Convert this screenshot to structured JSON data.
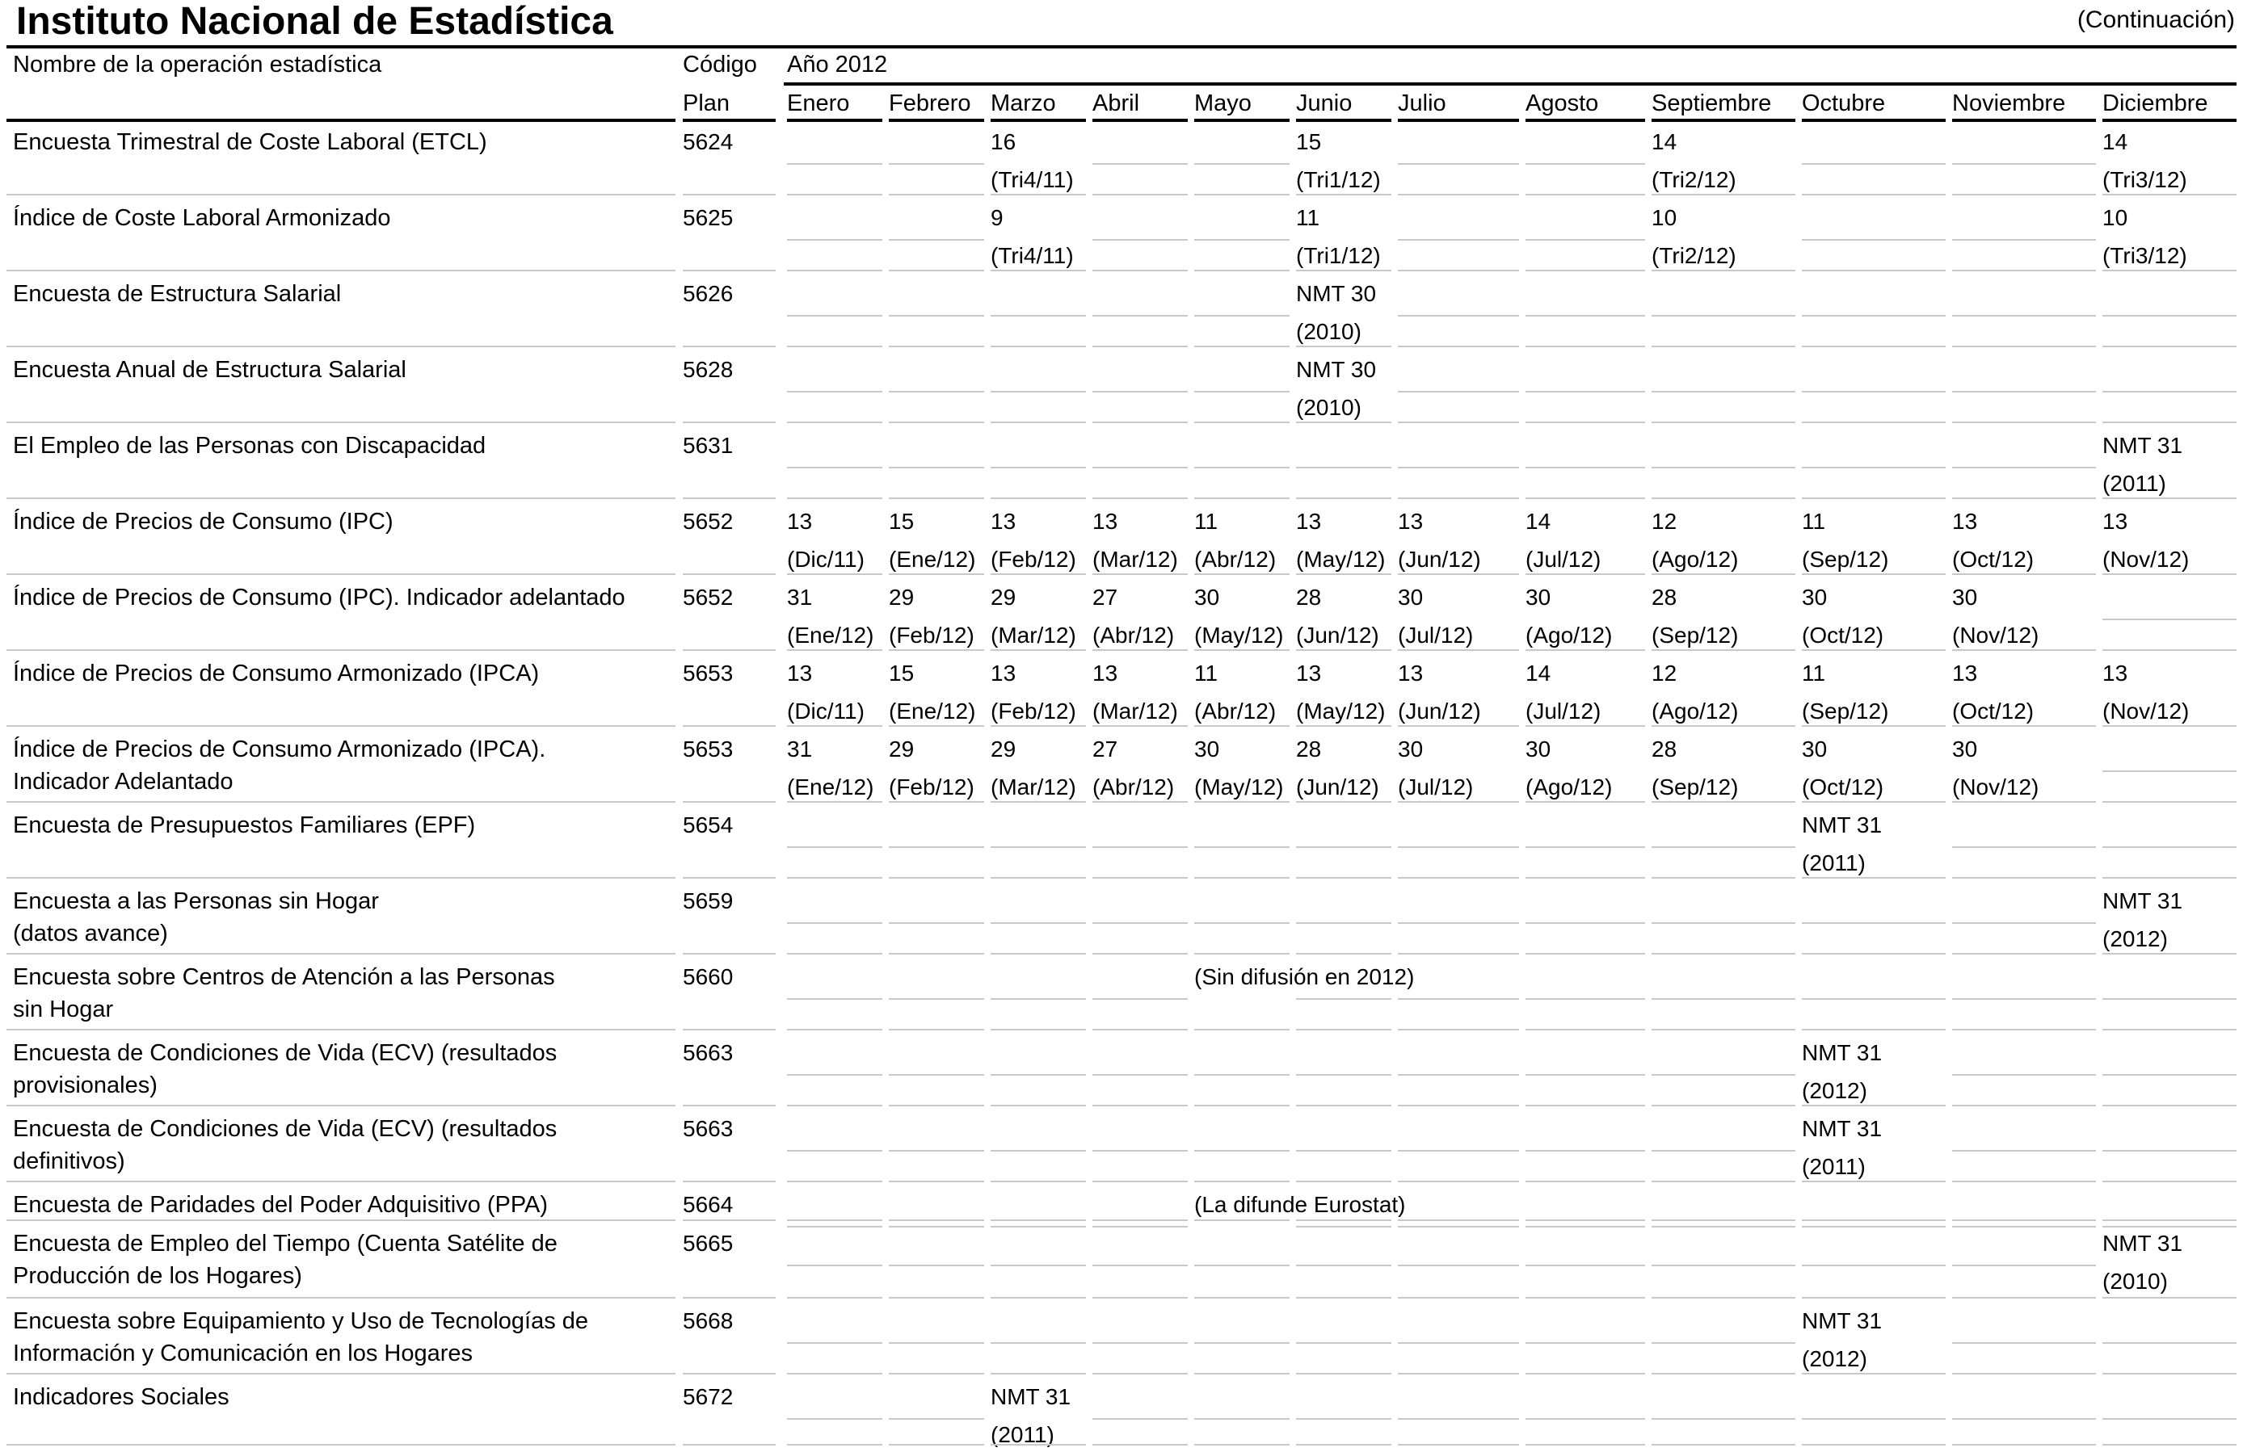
{
  "header": {
    "title": "Instituto Nacional de Estadística",
    "continuation": "(Continuación)"
  },
  "table": {
    "col_name": "Nombre de la operación estadística",
    "col_code_1": "Código",
    "col_code_2": "Plan",
    "year_label": "Año 2012",
    "months": [
      "Enero",
      "Febrero",
      "Marzo",
      "Abril",
      "Mayo",
      "Junio",
      "Julio",
      "Agosto",
      "Septiembre",
      "Octubre",
      "Noviembre",
      "Diciembre"
    ],
    "rows": [
      {
        "name": [
          "Encuesta Trimestral de Coste Laboral (ETCL)"
        ],
        "code": "5624",
        "entries": [
          {
            "m": 2,
            "l": [
              "16",
              "(Tri4/11)"
            ]
          },
          {
            "m": 5,
            "l": [
              "15",
              "(Tri1/12)"
            ]
          },
          {
            "m": 8,
            "l": [
              "14",
              "(Tri2/12)"
            ]
          },
          {
            "m": 11,
            "l": [
              "14",
              "(Tri3/12)"
            ]
          }
        ]
      },
      {
        "name": [
          "Índice de Coste Laboral Armonizado"
        ],
        "code": "5625",
        "entries": [
          {
            "m": 2,
            "l": [
              "9",
              "(Tri4/11)"
            ]
          },
          {
            "m": 5,
            "l": [
              "11",
              "(Tri1/12)"
            ]
          },
          {
            "m": 8,
            "l": [
              "10",
              "(Tri2/12)"
            ]
          },
          {
            "m": 11,
            "l": [
              "10",
              "(Tri3/12)"
            ]
          }
        ]
      },
      {
        "name": [
          "Encuesta de Estructura Salarial"
        ],
        "code": "5626",
        "entries": [
          {
            "m": 5,
            "l": [
              "NMT 30",
              "(2010)"
            ]
          }
        ]
      },
      {
        "name": [
          "Encuesta Anual de Estructura Salarial"
        ],
        "code": "5628",
        "entries": [
          {
            "m": 5,
            "l": [
              "NMT 30",
              "(2010)"
            ]
          }
        ]
      },
      {
        "name": [
          "El Empleo de las Personas con Discapacidad"
        ],
        "code": "5631",
        "entries": [
          {
            "m": 11,
            "l": [
              "NMT 31",
              "(2011)"
            ]
          }
        ]
      },
      {
        "name": [
          "Índice de Precios de Consumo (IPC)"
        ],
        "code": "5652",
        "entries": [
          {
            "m": 0,
            "l": [
              "13",
              "(Dic/11)"
            ]
          },
          {
            "m": 1,
            "l": [
              "15",
              "(Ene/12)"
            ]
          },
          {
            "m": 2,
            "l": [
              "13",
              "(Feb/12)"
            ]
          },
          {
            "m": 3,
            "l": [
              "13",
              "(Mar/12)"
            ]
          },
          {
            "m": 4,
            "l": [
              "11",
              "(Abr/12)"
            ]
          },
          {
            "m": 5,
            "l": [
              "13",
              "(May/12)"
            ]
          },
          {
            "m": 6,
            "l": [
              "13",
              "(Jun/12)"
            ]
          },
          {
            "m": 7,
            "l": [
              "14",
              "(Jul/12)"
            ]
          },
          {
            "m": 8,
            "l": [
              "12",
              "(Ago/12)"
            ]
          },
          {
            "m": 9,
            "l": [
              "11",
              "(Sep/12)"
            ]
          },
          {
            "m": 10,
            "l": [
              "13",
              "(Oct/12)"
            ]
          },
          {
            "m": 11,
            "l": [
              "13",
              "(Nov/12)"
            ]
          }
        ]
      },
      {
        "name": [
          "Índice de Precios de Consumo (IPC). Indicador adelantado"
        ],
        "code": "5652",
        "entries": [
          {
            "m": 0,
            "l": [
              "31",
              "(Ene/12)"
            ]
          },
          {
            "m": 1,
            "l": [
              "29",
              "(Feb/12)"
            ]
          },
          {
            "m": 2,
            "l": [
              "29",
              "(Mar/12)"
            ]
          },
          {
            "m": 3,
            "l": [
              "27",
              "(Abr/12)"
            ]
          },
          {
            "m": 4,
            "l": [
              "30",
              "(May/12)"
            ]
          },
          {
            "m": 5,
            "l": [
              "28",
              "(Jun/12)"
            ]
          },
          {
            "m": 6,
            "l": [
              "30",
              "(Jul/12)"
            ]
          },
          {
            "m": 7,
            "l": [
              "30",
              "(Ago/12)"
            ]
          },
          {
            "m": 8,
            "l": [
              "28",
              "(Sep/12)"
            ]
          },
          {
            "m": 9,
            "l": [
              "30",
              "(Oct/12)"
            ]
          },
          {
            "m": 10,
            "l": [
              "30",
              "(Nov/12)"
            ]
          }
        ]
      },
      {
        "name": [
          "Índice de Precios de Consumo Armonizado (IPCA)"
        ],
        "code": "5653",
        "entries": [
          {
            "m": 0,
            "l": [
              "13",
              "(Dic/11)"
            ]
          },
          {
            "m": 1,
            "l": [
              "15",
              "(Ene/12)"
            ]
          },
          {
            "m": 2,
            "l": [
              "13",
              "(Feb/12)"
            ]
          },
          {
            "m": 3,
            "l": [
              "13",
              "(Mar/12)"
            ]
          },
          {
            "m": 4,
            "l": [
              "11",
              "(Abr/12)"
            ]
          },
          {
            "m": 5,
            "l": [
              "13",
              "(May/12)"
            ]
          },
          {
            "m": 6,
            "l": [
              "13",
              "(Jun/12)"
            ]
          },
          {
            "m": 7,
            "l": [
              "14",
              "(Jul/12)"
            ]
          },
          {
            "m": 8,
            "l": [
              "12",
              "(Ago/12)"
            ]
          },
          {
            "m": 9,
            "l": [
              "11",
              "(Sep/12)"
            ]
          },
          {
            "m": 10,
            "l": [
              "13",
              "(Oct/12)"
            ]
          },
          {
            "m": 11,
            "l": [
              "13",
              "(Nov/12)"
            ]
          }
        ]
      },
      {
        "name": [
          "Índice de Precios de Consumo Armonizado (IPCA).",
          "Indicador Adelantado"
        ],
        "code": "5653",
        "entries": [
          {
            "m": 0,
            "l": [
              "31",
              "(Ene/12)"
            ]
          },
          {
            "m": 1,
            "l": [
              "29",
              "(Feb/12)"
            ]
          },
          {
            "m": 2,
            "l": [
              "29",
              "(Mar/12)"
            ]
          },
          {
            "m": 3,
            "l": [
              "27",
              "(Abr/12)"
            ]
          },
          {
            "m": 4,
            "l": [
              "30",
              "(May/12)"
            ]
          },
          {
            "m": 5,
            "l": [
              "28",
              "(Jun/12)"
            ]
          },
          {
            "m": 6,
            "l": [
              "30",
              "(Jul/12)"
            ]
          },
          {
            "m": 7,
            "l": [
              "30",
              "(Ago/12)"
            ]
          },
          {
            "m": 8,
            "l": [
              "28",
              "(Sep/12)"
            ]
          },
          {
            "m": 9,
            "l": [
              "30",
              "(Oct/12)"
            ]
          },
          {
            "m": 10,
            "l": [
              "30",
              "(Nov/12)"
            ]
          }
        ]
      },
      {
        "name": [
          "Encuesta de Presupuestos Familiares (EPF)"
        ],
        "code": "5654",
        "entries": [
          {
            "m": 9,
            "l": [
              "NMT 31",
              "(2011)"
            ]
          }
        ]
      },
      {
        "name": [
          "Encuesta a las Personas sin Hogar",
          "(datos avance)"
        ],
        "code": "5659",
        "entries": [
          {
            "m": 11,
            "l": [
              "NMT 31",
              "(2012)"
            ]
          }
        ]
      },
      {
        "name": [
          "Encuesta sobre Centros de Atención a las Personas",
          "sin Hogar"
        ],
        "code": "5660",
        "entries": [
          {
            "m": 4,
            "l": [
              "(Sin difusión en 2012)"
            ]
          }
        ]
      },
      {
        "name": [
          "Encuesta de Condiciones de Vida (ECV) (resultados",
          "provisionales)"
        ],
        "code": "5663",
        "entries": [
          {
            "m": 9,
            "l": [
              "NMT 31",
              "(2012)"
            ]
          }
        ]
      },
      {
        "name": [
          "Encuesta de Condiciones de Vida (ECV) (resultados",
          "definitivos)"
        ],
        "code": "5663",
        "entries": [
          {
            "m": 9,
            "l": [
              "NMT 31",
              "(2011)"
            ]
          }
        ]
      },
      {
        "name": [
          "Encuesta de Paridades del Poder Adquisitivo (PPA)"
        ],
        "code": "5664",
        "entries": [
          {
            "m": 4,
            "l": [
              "(La difunde Eurostat)"
            ]
          }
        ]
      },
      {
        "name": [
          "Encuesta de Empleo del Tiempo (Cuenta Satélite de",
          "Producción de los Hogares)"
        ],
        "code": "5665",
        "entries": [
          {
            "m": 11,
            "l": [
              "NMT 31",
              "(2010)"
            ]
          }
        ]
      },
      {
        "name": [
          "Encuesta sobre Equipamiento y Uso de Tecnologías de",
          "Información y Comunicación en los Hogares"
        ],
        "code": "5668",
        "entries": [
          {
            "m": 9,
            "l": [
              "NMT 31",
              "(2012)"
            ]
          }
        ]
      },
      {
        "name": [
          "Indicadores Sociales"
        ],
        "code": "5672",
        "entries": [
          {
            "m": 2,
            "l": [
              "NMT 31",
              "(2011)"
            ]
          }
        ]
      }
    ]
  }
}
